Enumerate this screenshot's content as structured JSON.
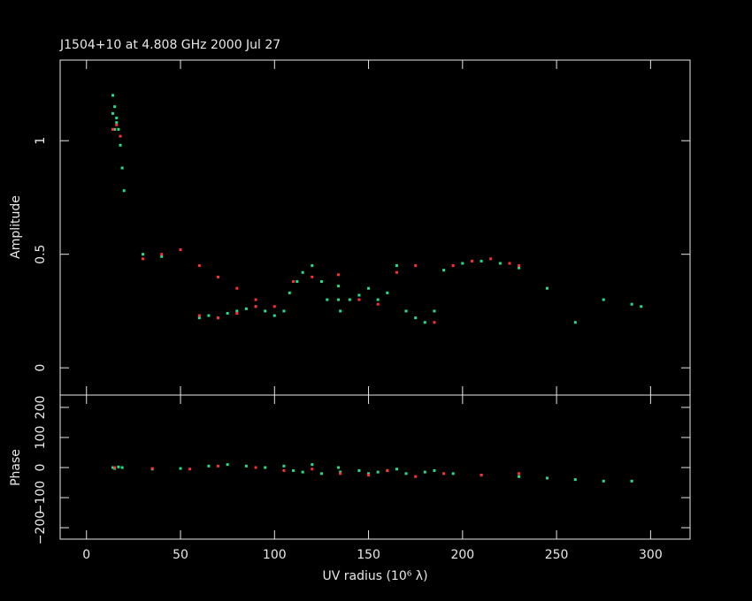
{
  "chart_data": [
    {
      "type": "scatter",
      "title": "J1504+10 at 4.808 GHz 2000 Jul 27",
      "y_label": "Amplitude",
      "ylim": [
        -0.12,
        1.355
      ],
      "yticks": [
        0,
        0.5,
        1
      ],
      "series": [
        {
          "color": "#22e08a",
          "x": [
            14,
            15,
            16,
            17,
            18,
            19,
            20,
            14,
            15,
            16,
            30,
            40,
            50,
            60,
            65,
            70,
            75,
            80,
            85,
            90,
            95,
            100,
            105,
            108,
            112,
            115,
            120,
            125,
            128,
            134,
            134,
            135,
            140,
            145,
            150,
            155,
            160,
            165,
            170,
            175,
            180,
            185,
            190,
            200,
            210,
            220,
            230,
            245,
            260,
            275,
            290,
            295
          ],
          "values": [
            1.12,
            1.15,
            1.08,
            1.05,
            0.98,
            0.88,
            0.78,
            1.2,
            1.05,
            1.1,
            0.5,
            0.49,
            0.52,
            0.22,
            0.23,
            0.22,
            0.24,
            0.25,
            0.26,
            0.27,
            0.25,
            0.23,
            0.25,
            0.33,
            0.38,
            0.42,
            0.45,
            0.38,
            0.3,
            0.36,
            0.3,
            0.25,
            0.3,
            0.32,
            0.35,
            0.3,
            0.33,
            0.45,
            0.25,
            0.22,
            0.2,
            0.25,
            0.43,
            0.46,
            0.47,
            0.46,
            0.44,
            0.35,
            0.2,
            0.3,
            0.28,
            0.27
          ]
        },
        {
          "color": "#ff3030",
          "x": [
            14,
            16,
            18,
            30,
            40,
            50,
            60,
            70,
            80,
            90,
            100,
            60,
            70,
            80,
            90,
            110,
            120,
            134,
            145,
            155,
            165,
            175,
            185,
            195,
            205,
            215,
            225,
            230
          ],
          "values": [
            1.05,
            1.07,
            1.02,
            0.48,
            0.5,
            0.52,
            0.45,
            0.4,
            0.35,
            0.3,
            0.27,
            0.23,
            0.22,
            0.24,
            0.27,
            0.38,
            0.4,
            0.41,
            0.3,
            0.28,
            0.42,
            0.45,
            0.2,
            0.45,
            0.47,
            0.48,
            0.46,
            0.45
          ]
        }
      ]
    },
    {
      "type": "scatter",
      "y_label": "Phase",
      "x_label": "UV radius  (10⁶ λ)",
      "xlim": [
        -14,
        321
      ],
      "xticks": [
        0,
        50,
        100,
        150,
        200,
        250,
        300
      ],
      "ylim": [
        -238,
        241
      ],
      "yticks": [
        {
          "value": -200,
          "label": "−200"
        },
        {
          "value": -100,
          "label": "−100"
        },
        0,
        100,
        200
      ],
      "series": [
        {
          "color": "#22e08a",
          "x": [
            14,
            15,
            17,
            19,
            35,
            50,
            65,
            75,
            85,
            95,
            105,
            110,
            115,
            120,
            125,
            134,
            135,
            145,
            150,
            155,
            160,
            165,
            170,
            180,
            185,
            195,
            210,
            230,
            245,
            260,
            275,
            290
          ],
          "values": [
            0,
            -3,
            2,
            0,
            -5,
            -3,
            5,
            10,
            5,
            0,
            5,
            -10,
            -15,
            10,
            -20,
            0,
            -15,
            -10,
            -20,
            -15,
            -10,
            -5,
            -20,
            -15,
            -10,
            -20,
            -25,
            -30,
            -35,
            -40,
            -45,
            -45
          ]
        },
        {
          "color": "#ff3030",
          "x": [
            15,
            35,
            55,
            70,
            90,
            105,
            120,
            135,
            150,
            160,
            175,
            190,
            210,
            230
          ],
          "values": [
            0,
            -3,
            -5,
            5,
            0,
            -10,
            -5,
            -20,
            -25,
            -10,
            -30,
            -20,
            -25,
            -20
          ]
        }
      ]
    }
  ]
}
